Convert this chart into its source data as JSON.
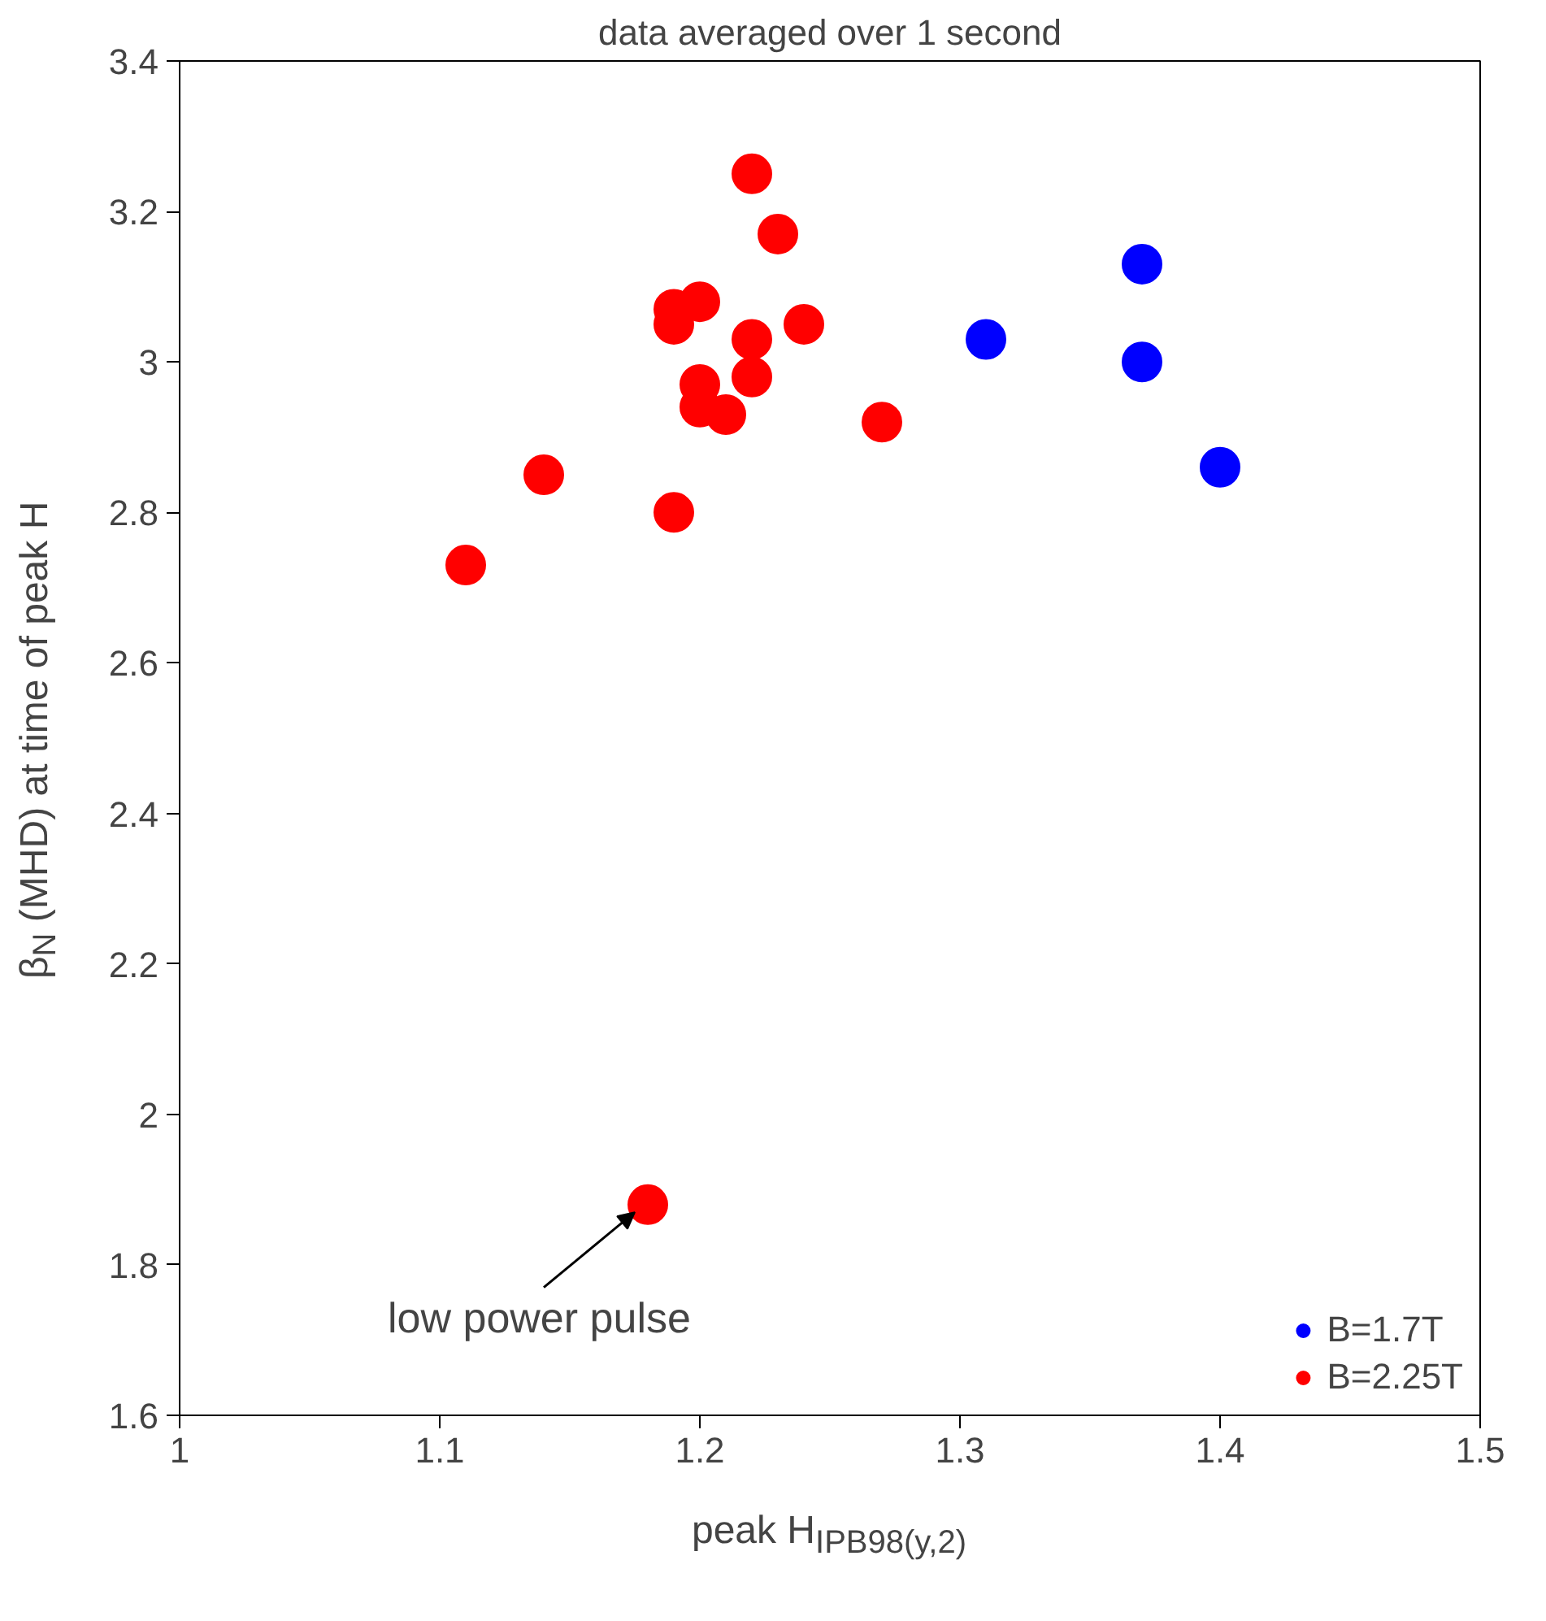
{
  "chart_data": {
    "type": "scatter",
    "title": "data averaged over 1 second",
    "xlabel": "peak H$_{IPB98(y,2)}$",
    "ylabel": "β$_{N}$ (MHD) at time of peak H",
    "xlim": [
      1,
      1.5
    ],
    "xticks": [
      1,
      1.1,
      1.2,
      1.3,
      1.4,
      1.5
    ],
    "ylim": [
      1.6,
      3.4
    ],
    "yticks": [
      1.6,
      1.8,
      2,
      2.2,
      2.4,
      2.6,
      2.8,
      3,
      3.2,
      3.4
    ],
    "grid": false,
    "legend": "bottom right",
    "marker": "circle",
    "series": [
      {
        "name": "B=1.7T",
        "color": "#0000ff",
        "x": [
          1.31,
          1.37,
          1.37,
          1.4
        ],
        "values": [
          3.03,
          3.13,
          3.0,
          2.86
        ]
      },
      {
        "name": "B=2.25T",
        "color": "#ff0000",
        "x": [
          1.11,
          1.14,
          1.19,
          1.19,
          1.19,
          1.2,
          1.2,
          1.2,
          1.21,
          1.22,
          1.23,
          1.22,
          1.22,
          1.24,
          1.27,
          1.18
        ],
        "values": [
          2.73,
          2.85,
          2.8,
          3.07,
          3.05,
          3.08,
          2.97,
          2.94,
          2.93,
          3.25,
          3.17,
          3.03,
          2.98,
          3.05,
          2.92,
          1.88
        ]
      }
    ],
    "annotations": [
      {
        "text": "low power pulse",
        "x": 1.18,
        "y": 1.88
      }
    ]
  }
}
